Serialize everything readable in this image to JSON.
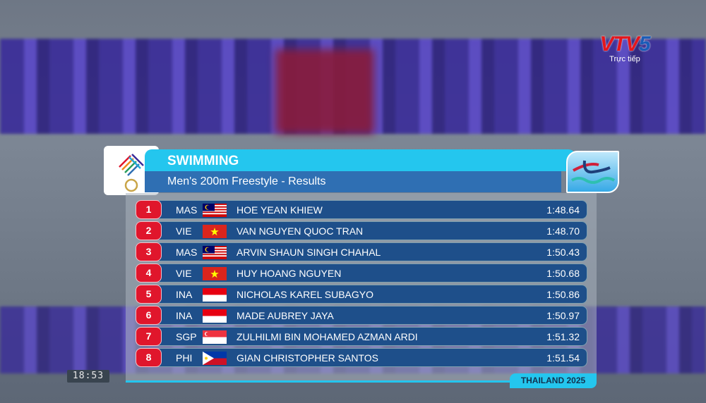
{
  "broadcaster": {
    "logo": "VTV5",
    "status": "Trực tiếp"
  },
  "header": {
    "sport": "SWIMMING",
    "event": "Men's 200m Freestyle - Results"
  },
  "results": [
    {
      "rank": "1",
      "country": "MAS",
      "name": "HOE YEAN KHIEW",
      "time": "1:48.64"
    },
    {
      "rank": "2",
      "country": "VIE",
      "name": "VAN NGUYEN QUOC TRAN",
      "time": "1:48.70"
    },
    {
      "rank": "3",
      "country": "MAS",
      "name": "ARVIN SHAUN SINGH CHAHAL",
      "time": "1:50.43"
    },
    {
      "rank": "4",
      "country": "VIE",
      "name": "HUY HOANG NGUYEN",
      "time": "1:50.68"
    },
    {
      "rank": "5",
      "country": "INA",
      "name": "NICHOLAS KAREL SUBAGYO",
      "time": "1:50.86"
    },
    {
      "rank": "6",
      "country": "INA",
      "name": "MADE AUBREY JAYA",
      "time": "1:50.97"
    },
    {
      "rank": "7",
      "country": "SGP",
      "name": "ZULHILMI BIN MOHAMED AZMAN ARDI",
      "time": "1:51.32"
    },
    {
      "rank": "8",
      "country": "PHI",
      "name": "GIAN CHRISTOPHER SANTOS",
      "time": "1:51.54"
    }
  ],
  "footer": {
    "tag": "THAILAND 2025"
  },
  "clock": "18:53"
}
